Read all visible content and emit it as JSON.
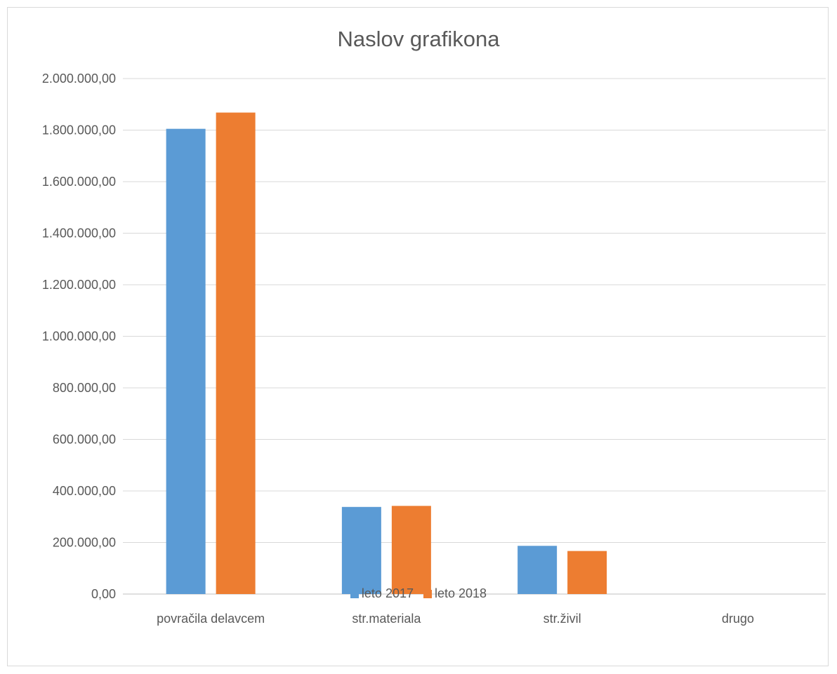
{
  "chart_data": {
    "type": "bar",
    "title": "Naslov grafikona",
    "categories": [
      "povračila delavcem",
      "str.materiala",
      "str.živil",
      "drugo"
    ],
    "series": [
      {
        "name": "leto 2017",
        "color": "#5b9bd5",
        "values": [
          1805000,
          338000,
          187000,
          0
        ]
      },
      {
        "name": "leto 2018",
        "color": "#ed7d31",
        "values": [
          1868000,
          342000,
          167000,
          0
        ]
      }
    ],
    "ylim": [
      0,
      2000000
    ],
    "y_ticks": [
      0,
      200000,
      400000,
      600000,
      800000,
      1000000,
      1200000,
      1400000,
      1600000,
      1800000,
      2000000
    ],
    "y_tick_labels": [
      "0,00",
      "200.000,00",
      "400.000,00",
      "600.000,00",
      "800.000,00",
      "1.000.000,00",
      "1.200.000,00",
      "1.400.000,00",
      "1.600.000,00",
      "1.800.000,00",
      "2.000.000,00"
    ],
    "xlabel": "",
    "ylabel": "",
    "grid": true,
    "legend_position": "bottom"
  }
}
